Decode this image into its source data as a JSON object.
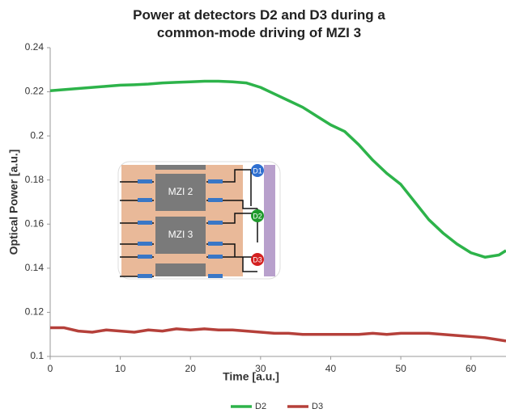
{
  "chart_data": {
    "type": "line",
    "title": "Power at detectors D2 and D3 during a common-mode driving of MZI 3",
    "x_label": "Time [a.u.]",
    "y_label": "Optical Power [a.u.]",
    "x": [
      0,
      2,
      4,
      6,
      8,
      10,
      12,
      14,
      16,
      18,
      20,
      22,
      24,
      26,
      28,
      30,
      32,
      34,
      36,
      38,
      40,
      42,
      44,
      46,
      48,
      50,
      52,
      54,
      56,
      58,
      60,
      62,
      64,
      65
    ],
    "series": [
      {
        "name": "D2",
        "color": "#2db34a",
        "values": [
          0.2205,
          0.221,
          0.2215,
          0.222,
          0.2225,
          0.223,
          0.2232,
          0.2235,
          0.224,
          0.2243,
          0.2245,
          0.2248,
          0.2248,
          0.2245,
          0.224,
          0.222,
          0.219,
          0.216,
          0.213,
          0.209,
          0.205,
          0.202,
          0.196,
          0.189,
          0.183,
          0.178,
          0.17,
          0.162,
          0.156,
          0.151,
          0.147,
          0.145,
          0.146,
          0.148
        ]
      },
      {
        "name": "D3",
        "color": "#b5403a",
        "values": [
          0.113,
          0.113,
          0.1115,
          0.111,
          0.112,
          0.1115,
          0.111,
          0.112,
          0.1115,
          0.1125,
          0.112,
          0.1125,
          0.112,
          0.112,
          0.1115,
          0.111,
          0.1105,
          0.1105,
          0.11,
          0.11,
          0.11,
          0.11,
          0.11,
          0.1105,
          0.11,
          0.1105,
          0.1105,
          0.1105,
          0.11,
          0.1095,
          0.109,
          0.1085,
          0.1075,
          0.107
        ]
      }
    ],
    "xlim": [
      0,
      65
    ],
    "ylim": [
      0.1,
      0.24
    ],
    "xticks": [
      0,
      10,
      20,
      30,
      40,
      50,
      60
    ],
    "yticks": [
      0.1,
      0.12,
      0.14,
      0.16,
      0.18,
      0.2,
      0.22,
      0.24
    ],
    "grid": false,
    "legend": "bottom",
    "inset": {
      "mzi_labels": [
        "MZI 2",
        "MZI 3"
      ],
      "detectors": [
        "D1",
        "D2",
        "D3"
      ]
    }
  }
}
